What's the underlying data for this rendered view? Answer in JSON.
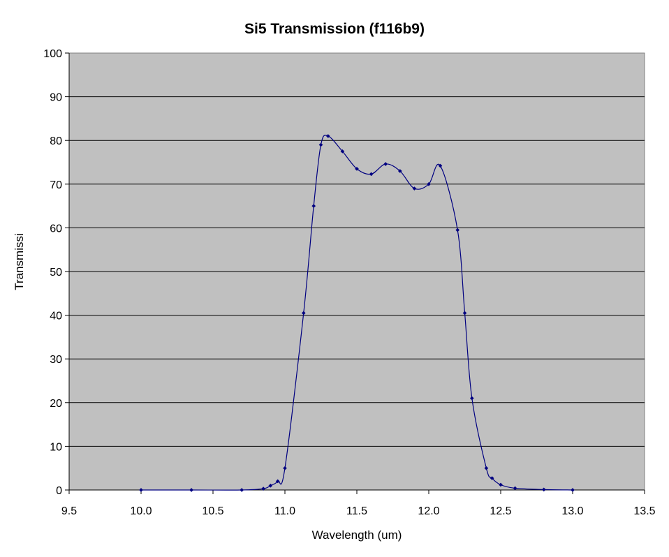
{
  "chart_data": {
    "type": "line",
    "title": "Si5 Transmission (f116b9)",
    "xlabel": "Wavelength (um)",
    "ylabel": "Transmissi",
    "xlim": [
      9.5,
      13.5
    ],
    "ylim": [
      0,
      100
    ],
    "x_ticks": [
      "9.5",
      "10.0",
      "10.5",
      "11.0",
      "11.5",
      "12.0",
      "12.5",
      "13.0",
      "13.5"
    ],
    "y_ticks": [
      "0",
      "10",
      "20",
      "30",
      "40",
      "50",
      "60",
      "70",
      "80",
      "90",
      "100"
    ],
    "grid": true,
    "legend": "none",
    "colors": {
      "plot_background": "#c0c0c0",
      "line": "#000080",
      "grid": "#000000"
    },
    "series": [
      {
        "points": [
          [
            10.0,
            0
          ],
          [
            10.35,
            0
          ],
          [
            10.7,
            0
          ],
          [
            10.85,
            0.3
          ],
          [
            10.9,
            1
          ],
          [
            10.95,
            2
          ],
          [
            11.0,
            5
          ],
          [
            11.13,
            40.5
          ],
          [
            11.2,
            65
          ],
          [
            11.25,
            79
          ],
          [
            11.3,
            81
          ],
          [
            11.4,
            77.5
          ],
          [
            11.5,
            73.5
          ],
          [
            11.6,
            72.3
          ],
          [
            11.7,
            74.6
          ],
          [
            11.8,
            73
          ],
          [
            11.9,
            69
          ],
          [
            12.0,
            70
          ],
          [
            12.08,
            74.2
          ],
          [
            12.2,
            59.5
          ],
          [
            12.25,
            40.5
          ],
          [
            12.3,
            21
          ],
          [
            12.4,
            5
          ],
          [
            12.44,
            2.7
          ],
          [
            12.5,
            1.2
          ],
          [
            12.6,
            0.4
          ],
          [
            12.8,
            0.1
          ],
          [
            13.0,
            0
          ]
        ]
      }
    ]
  }
}
